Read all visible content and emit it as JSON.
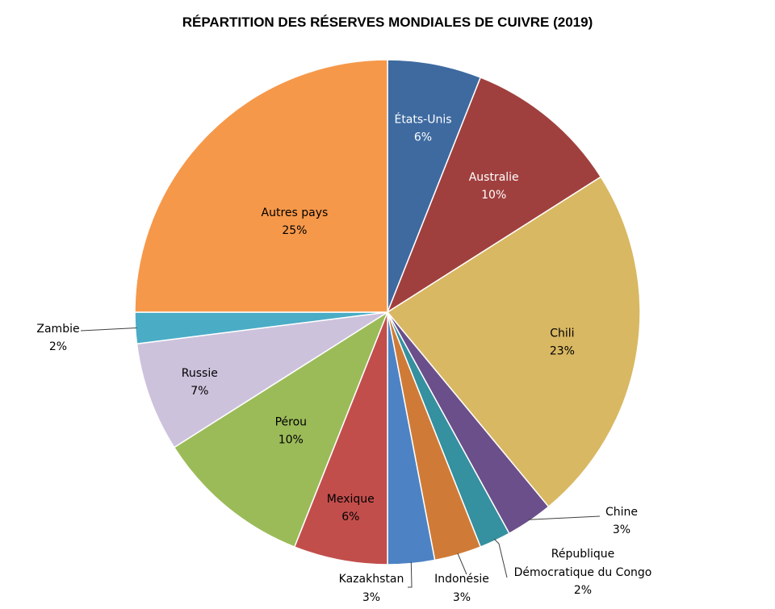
{
  "chart_data": {
    "type": "pie",
    "title": "RÉPARTITION DES RÉSERVES MONDIALES DE CUIVRE (2019)",
    "start_angle_deg": 0,
    "slices": [
      {
        "label": "États-Unis",
        "pct_label": "6%",
        "value": 6,
        "color": "#3e6aa0",
        "text_color": "#ffffff",
        "label_mode": "inside"
      },
      {
        "label": "Australie",
        "pct_label": "10%",
        "value": 10,
        "color": "#a0403e",
        "text_color": "#ffffff",
        "label_mode": "inside"
      },
      {
        "label": "Chili",
        "pct_label": "23%",
        "value": 23,
        "color": "#d9b863",
        "text_color": "#000000",
        "label_mode": "inside"
      },
      {
        "label": "Chine",
        "pct_label": "3%",
        "value": 3,
        "color": "#6b4f8a",
        "text_color": "#000000",
        "label_mode": "outside"
      },
      {
        "label": "République Démocratique du Congo",
        "label_lines": [
          "République",
          "Démocratique du Congo"
        ],
        "pct_label": "2%",
        "value": 2,
        "color": "#35909f",
        "text_color": "#000000",
        "label_mode": "outside"
      },
      {
        "label": "Indonésie",
        "pct_label": "3%",
        "value": 3,
        "color": "#cf7b37",
        "text_color": "#000000",
        "label_mode": "outside"
      },
      {
        "label": "Kazakhstan",
        "pct_label": "3%",
        "value": 3,
        "color": "#4d83c4",
        "text_color": "#000000",
        "label_mode": "outside"
      },
      {
        "label": "Mexique",
        "pct_label": "6%",
        "value": 6,
        "color": "#c24e4c",
        "text_color": "#000000",
        "label_mode": "inside"
      },
      {
        "label": "Pérou",
        "pct_label": "10%",
        "value": 10,
        "color": "#9bbb59",
        "text_color": "#000000",
        "label_mode": "inside"
      },
      {
        "label": "Russie",
        "pct_label": "7%",
        "value": 7,
        "color": "#cdc2dc",
        "text_color": "#000000",
        "label_mode": "inside"
      },
      {
        "label": "Zambie",
        "pct_label": "2%",
        "value": 2,
        "color": "#4bacc6",
        "text_color": "#000000",
        "label_mode": "outside"
      },
      {
        "label": "Autres pays",
        "pct_label": "25%",
        "value": 25,
        "color": "#f6984a",
        "text_color": "#000000",
        "label_mode": "inside"
      }
    ]
  }
}
